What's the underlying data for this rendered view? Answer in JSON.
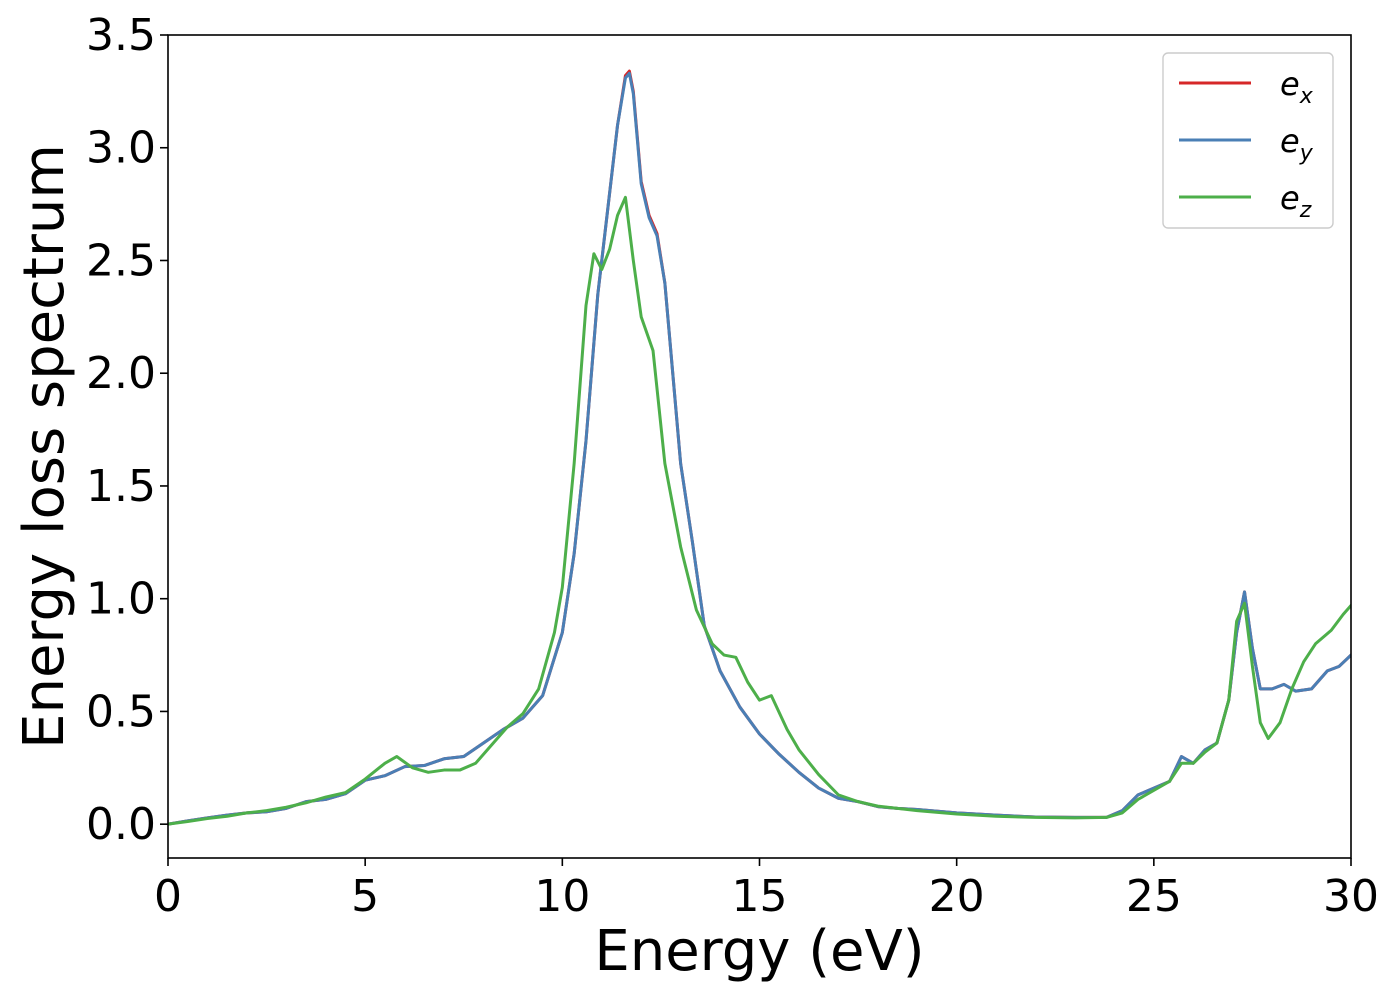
{
  "chart_data": {
    "type": "line",
    "title": "",
    "xlabel": "Energy (eV)",
    "ylabel": "Energy loss spectrum",
    "xlim": [
      0,
      30
    ],
    "ylim": [
      -0.15,
      3.5
    ],
    "xticks": [
      0,
      5,
      10,
      15,
      20,
      25,
      30
    ],
    "xtick_labels": [
      "0",
      "5",
      "10",
      "15",
      "20",
      "25",
      "30"
    ],
    "yticks": [
      0.0,
      0.5,
      1.0,
      1.5,
      2.0,
      2.5,
      3.0,
      3.5
    ],
    "ytick_labels": [
      "0.0",
      "0.5",
      "1.0",
      "1.5",
      "2.0",
      "2.5",
      "3.0",
      "3.5"
    ],
    "grid": false,
    "legend_position": "top-right",
    "series": [
      {
        "name": "e_x",
        "label_base": "e",
        "label_sub": "x",
        "color": "#d62728",
        "x": [
          0,
          0.5,
          1,
          1.5,
          2,
          2.5,
          3,
          3.5,
          4,
          4.5,
          5,
          5.5,
          6,
          6.5,
          7,
          7.5,
          8,
          8.5,
          9,
          9.5,
          10,
          10.3,
          10.6,
          10.9,
          11.2,
          11.4,
          11.6,
          11.7,
          11.8,
          12,
          12.2,
          12.4,
          12.6,
          12.8,
          13,
          13.3,
          13.6,
          14,
          14.5,
          15,
          15.5,
          16,
          16.5,
          17,
          17.5,
          18,
          18.5,
          19,
          20,
          21,
          22,
          23,
          23.8,
          24.2,
          24.6,
          25,
          25.4,
          25.7,
          26,
          26.3,
          26.6,
          26.9,
          27.1,
          27.3,
          27.5,
          27.7,
          28,
          28.3,
          28.6,
          29,
          29.4,
          29.7,
          30
        ],
        "y": [
          0,
          0.015,
          0.028,
          0.04,
          0.05,
          0.055,
          0.07,
          0.1,
          0.11,
          0.135,
          0.195,
          0.215,
          0.255,
          0.26,
          0.29,
          0.3,
          0.36,
          0.42,
          0.47,
          0.57,
          0.85,
          1.2,
          1.7,
          2.35,
          2.8,
          3.1,
          3.32,
          3.34,
          3.25,
          2.85,
          2.7,
          2.62,
          2.4,
          2.0,
          1.6,
          1.25,
          0.88,
          0.68,
          0.52,
          0.4,
          0.31,
          0.23,
          0.16,
          0.115,
          0.1,
          0.078,
          0.07,
          0.065,
          0.05,
          0.04,
          0.032,
          0.03,
          0.03,
          0.06,
          0.13,
          0.16,
          0.19,
          0.3,
          0.27,
          0.33,
          0.36,
          0.55,
          0.85,
          1.03,
          0.78,
          0.6,
          0.6,
          0.62,
          0.59,
          0.6,
          0.68,
          0.7,
          0.75
        ]
      },
      {
        "name": "e_y",
        "label_base": "e",
        "label_sub": "y",
        "color": "#4a7fb5",
        "x": [
          0,
          0.5,
          1,
          1.5,
          2,
          2.5,
          3,
          3.5,
          4,
          4.5,
          5,
          5.5,
          6,
          6.5,
          7,
          7.5,
          8,
          8.5,
          9,
          9.5,
          10,
          10.3,
          10.6,
          10.9,
          11.2,
          11.4,
          11.6,
          11.7,
          11.8,
          12,
          12.2,
          12.4,
          12.6,
          12.8,
          13,
          13.3,
          13.6,
          14,
          14.5,
          15,
          15.5,
          16,
          16.5,
          17,
          17.5,
          18,
          18.5,
          19,
          20,
          21,
          22,
          23,
          23.8,
          24.2,
          24.6,
          25,
          25.4,
          25.7,
          26,
          26.3,
          26.6,
          26.9,
          27.1,
          27.3,
          27.5,
          27.7,
          28,
          28.3,
          28.6,
          29,
          29.4,
          29.7,
          30
        ],
        "y": [
          0,
          0.015,
          0.028,
          0.04,
          0.05,
          0.055,
          0.07,
          0.1,
          0.11,
          0.135,
          0.195,
          0.215,
          0.255,
          0.26,
          0.29,
          0.3,
          0.36,
          0.42,
          0.47,
          0.57,
          0.85,
          1.2,
          1.7,
          2.35,
          2.8,
          3.1,
          3.31,
          3.33,
          3.24,
          2.84,
          2.69,
          2.61,
          2.4,
          2.0,
          1.6,
          1.25,
          0.88,
          0.68,
          0.52,
          0.4,
          0.31,
          0.23,
          0.16,
          0.115,
          0.1,
          0.078,
          0.07,
          0.065,
          0.05,
          0.04,
          0.032,
          0.03,
          0.03,
          0.06,
          0.13,
          0.16,
          0.19,
          0.3,
          0.27,
          0.33,
          0.36,
          0.55,
          0.85,
          1.03,
          0.78,
          0.6,
          0.6,
          0.62,
          0.59,
          0.6,
          0.68,
          0.7,
          0.75
        ]
      },
      {
        "name": "e_z",
        "label_base": "e",
        "label_sub": "z",
        "color": "#4daf4a",
        "x": [
          0,
          0.5,
          1,
          1.5,
          2,
          2.5,
          3,
          3.5,
          4,
          4.5,
          5,
          5.5,
          5.8,
          6.2,
          6.6,
          7,
          7.4,
          7.8,
          8.2,
          8.6,
          9,
          9.4,
          9.8,
          10,
          10.3,
          10.6,
          10.8,
          11,
          11.2,
          11.4,
          11.6,
          11.8,
          12,
          12.3,
          12.6,
          13,
          13.4,
          13.8,
          14.1,
          14.4,
          14.7,
          15,
          15.3,
          15.7,
          16,
          16.5,
          17,
          17.5,
          18,
          18.5,
          19,
          20,
          21,
          22,
          23,
          23.8,
          24.2,
          24.6,
          25,
          25.4,
          25.7,
          26,
          26.3,
          26.6,
          26.9,
          27.1,
          27.3,
          27.5,
          27.7,
          27.9,
          28.2,
          28.5,
          28.8,
          29.1,
          29.5,
          29.8,
          30
        ],
        "y": [
          0,
          0.012,
          0.025,
          0.035,
          0.05,
          0.06,
          0.075,
          0.095,
          0.12,
          0.14,
          0.2,
          0.27,
          0.3,
          0.25,
          0.23,
          0.24,
          0.24,
          0.27,
          0.35,
          0.43,
          0.49,
          0.6,
          0.85,
          1.05,
          1.6,
          2.3,
          2.53,
          2.46,
          2.55,
          2.7,
          2.78,
          2.5,
          2.25,
          2.1,
          1.6,
          1.23,
          0.95,
          0.8,
          0.75,
          0.74,
          0.63,
          0.55,
          0.57,
          0.42,
          0.33,
          0.22,
          0.13,
          0.1,
          0.08,
          0.07,
          0.06,
          0.045,
          0.035,
          0.03,
          0.028,
          0.03,
          0.05,
          0.11,
          0.15,
          0.19,
          0.27,
          0.27,
          0.32,
          0.36,
          0.55,
          0.9,
          0.98,
          0.7,
          0.45,
          0.38,
          0.45,
          0.6,
          0.72,
          0.8,
          0.86,
          0.93,
          0.97
        ]
      }
    ]
  }
}
